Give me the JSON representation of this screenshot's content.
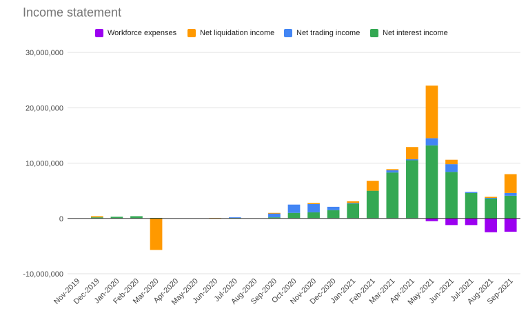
{
  "chart_data": {
    "type": "bar",
    "stacked": true,
    "title": "Income statement",
    "xlabel": "",
    "ylabel": "",
    "ylim": [
      -10000000,
      30000000
    ],
    "yticks": [
      -10000000,
      0,
      10000000,
      20000000,
      30000000
    ],
    "ytick_labels": [
      "-10,000,000",
      "0",
      "10,000,000",
      "20,000,000",
      "30,000,000"
    ],
    "grid": true,
    "legend_position": "top",
    "categories": [
      "Nov-2019",
      "Dec-2019",
      "Jan-2020",
      "Feb-2020",
      "Mar-2020",
      "Apr-2020",
      "May-2020",
      "Jun-2020",
      "Jul-2020",
      "Aug-2020",
      "Sep-2020",
      "Oct-2020",
      "Nov-2020",
      "Dec-2020",
      "Jan-2021",
      "Feb-2021",
      "Mar-2021",
      "Apr-2021",
      "May-2021",
      "Jun-2021",
      "Jul-2021",
      "Aug-2021",
      "Sep-2021"
    ],
    "series": [
      {
        "name": "Workforce expenses",
        "color": "#9b00f0",
        "values": [
          0,
          0,
          0,
          0,
          0,
          0,
          0,
          0,
          0,
          0,
          0,
          0,
          0,
          0,
          0,
          0,
          0,
          0,
          -500000,
          -1200000,
          -1200000,
          -2500000,
          -2400000
        ]
      },
      {
        "name": "Net liquidation income",
        "color": "#ff9900",
        "values": [
          0,
          200000,
          0,
          0,
          -5700000,
          0,
          0,
          100000,
          0,
          0,
          100000,
          0,
          200000,
          0,
          300000,
          1800000,
          200000,
          2200000,
          9500000,
          800000,
          0,
          200000,
          3400000
        ]
      },
      {
        "name": "Net trading income",
        "color": "#4285f4",
        "values": [
          0,
          0,
          0,
          0,
          0,
          0,
          0,
          0,
          100000,
          0,
          700000,
          1500000,
          1500000,
          600000,
          100000,
          0,
          400000,
          200000,
          1300000,
          1400000,
          200000,
          100000,
          500000
        ]
      },
      {
        "name": "Net interest income",
        "color": "#34a853",
        "values": [
          0,
          200000,
          300000,
          400000,
          100000,
          0,
          0,
          0,
          100000,
          0,
          200000,
          1000000,
          1100000,
          1500000,
          2700000,
          5000000,
          8300000,
          10500000,
          13200000,
          8400000,
          4600000,
          3600000,
          4100000
        ]
      }
    ]
  }
}
